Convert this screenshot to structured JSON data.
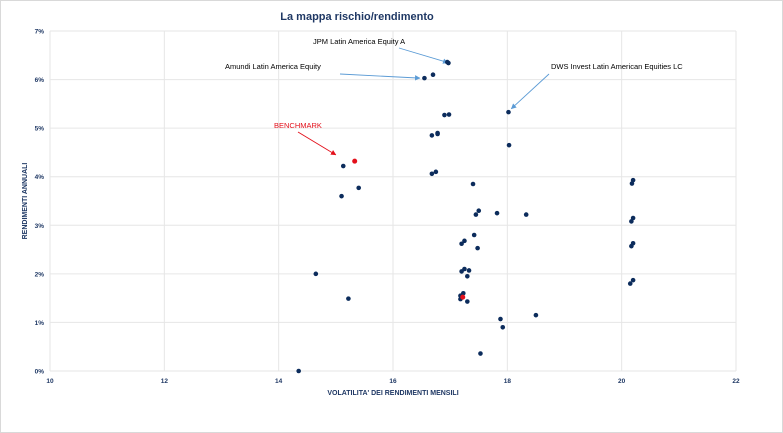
{
  "chart_data": {
    "type": "scatter",
    "title": "La mappa rischio/rendimento",
    "xlabel": "VOLATILITA' DEI RENDIMENTI MENSILI",
    "ylabel": "RENDIMENTI ANNUALI",
    "xlim": [
      10,
      22
    ],
    "ylim": [
      0,
      7
    ],
    "x_ticks": [
      10,
      12,
      14,
      16,
      18,
      20,
      22
    ],
    "y_ticks": [
      0,
      1,
      2,
      3,
      4,
      5,
      6,
      7
    ],
    "y_tick_labels": [
      "0%",
      "1%",
      "2%",
      "3%",
      "4%",
      "5%",
      "6%",
      "7%"
    ],
    "grid": "vertical and horizontal",
    "colors": {
      "point": "#0c2c5c",
      "benchmark": "#e3101b",
      "annotation_arrow": "#5b9bd5",
      "benchmark_arrow": "#e3101b",
      "gridline": "#e6e6e6",
      "text": "#1f3864"
    },
    "points": [
      {
        "x": 16.95,
        "y": 6.36
      },
      {
        "x": 16.97,
        "y": 6.34
      },
      {
        "x": 16.7,
        "y": 6.1
      },
      {
        "x": 16.55,
        "y": 6.03
      },
      {
        "x": 18.02,
        "y": 5.33
      },
      {
        "x": 16.9,
        "y": 5.27
      },
      {
        "x": 16.98,
        "y": 5.28
      },
      {
        "x": 16.78,
        "y": 4.9
      },
      {
        "x": 16.78,
        "y": 4.88
      },
      {
        "x": 16.68,
        "y": 4.85
      },
      {
        "x": 18.03,
        "y": 4.65
      },
      {
        "x": 15.13,
        "y": 4.22
      },
      {
        "x": 16.75,
        "y": 4.1
      },
      {
        "x": 16.68,
        "y": 4.06
      },
      {
        "x": 20.2,
        "y": 3.93
      },
      {
        "x": 20.18,
        "y": 3.86
      },
      {
        "x": 17.4,
        "y": 3.85
      },
      {
        "x": 15.4,
        "y": 3.77
      },
      {
        "x": 15.1,
        "y": 3.6
      },
      {
        "x": 17.5,
        "y": 3.3
      },
      {
        "x": 17.82,
        "y": 3.25
      },
      {
        "x": 17.45,
        "y": 3.22
      },
      {
        "x": 18.33,
        "y": 3.22
      },
      {
        "x": 20.2,
        "y": 3.15
      },
      {
        "x": 20.17,
        "y": 3.08
      },
      {
        "x": 17.42,
        "y": 2.8
      },
      {
        "x": 17.25,
        "y": 2.68
      },
      {
        "x": 17.2,
        "y": 2.62
      },
      {
        "x": 20.2,
        "y": 2.63
      },
      {
        "x": 20.17,
        "y": 2.57
      },
      {
        "x": 17.48,
        "y": 2.53
      },
      {
        "x": 17.25,
        "y": 2.1
      },
      {
        "x": 17.33,
        "y": 2.07
      },
      {
        "x": 17.2,
        "y": 2.05
      },
      {
        "x": 14.65,
        "y": 2.0
      },
      {
        "x": 17.3,
        "y": 1.95
      },
      {
        "x": 20.2,
        "y": 1.87
      },
      {
        "x": 20.15,
        "y": 1.8
      },
      {
        "x": 17.23,
        "y": 1.6
      },
      {
        "x": 17.18,
        "y": 1.55
      },
      {
        "x": 15.22,
        "y": 1.49
      },
      {
        "x": 17.18,
        "y": 1.48
      },
      {
        "x": 17.3,
        "y": 1.43
      },
      {
        "x": 18.5,
        "y": 1.15
      },
      {
        "x": 17.88,
        "y": 1.07
      },
      {
        "x": 17.92,
        "y": 0.9
      },
      {
        "x": 17.53,
        "y": 0.36
      },
      {
        "x": 14.35,
        "y": 0.0
      }
    ],
    "benchmark_points": [
      {
        "x": 15.33,
        "y": 4.32
      },
      {
        "x": 17.22,
        "y": 1.52
      }
    ],
    "annotations": [
      {
        "label": "JPM Latin America Equity A",
        "target": {
          "x": 16.96,
          "y": 6.35
        },
        "style": "blue"
      },
      {
        "label": "Amundi Latin America Equity",
        "target": {
          "x": 16.47,
          "y": 6.03
        },
        "style": "blue"
      },
      {
        "label": "DWS Invest Latin American Equities LC",
        "target": {
          "x": 18.07,
          "y": 5.4
        },
        "style": "blue"
      },
      {
        "label": "BENCHMARK",
        "target": {
          "x": 15.0,
          "y": 4.45
        },
        "style": "red"
      }
    ]
  }
}
